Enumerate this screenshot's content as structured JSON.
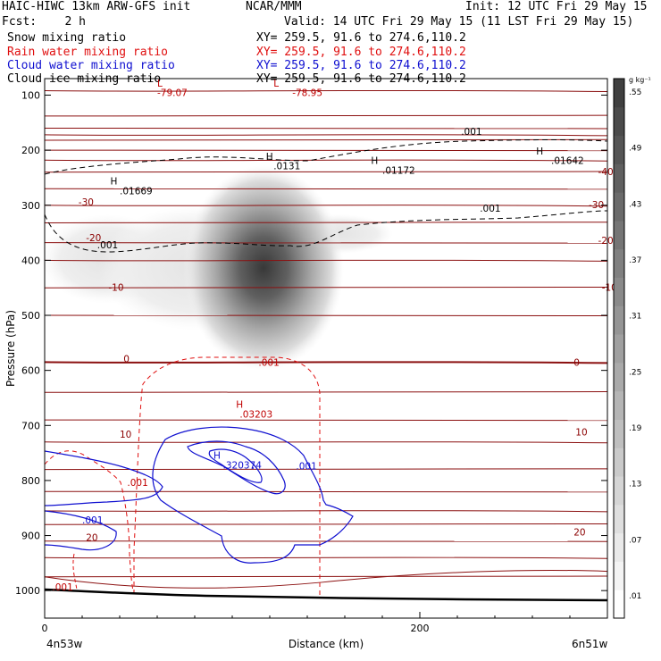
{
  "header": {
    "title": "HAIC-HIWC 13km ARW-GFS init",
    "org": "NCAR/MMM",
    "init": "Init: 12 UTC Fri 29 May 15",
    "fcst": "Fcst:    2 h",
    "valid": "Valid: 14 UTC Fri 29 May 15 (11 LST Fri 29 May 15)"
  },
  "fields": [
    {
      "label": "Snow mixing ratio",
      "xy": "XY= 259.5, 91.6 to 274.6,110.2",
      "color": "#000000"
    },
    {
      "label": "Rain water mixing ratio",
      "xy": "XY= 259.5, 91.6 to 274.6,110.2",
      "color": "#e01010"
    },
    {
      "label": "Cloud water mixing ratio",
      "xy": "XY= 259.5, 91.6 to 274.6,110.2",
      "color": "#1010d0"
    },
    {
      "label": "Cloud ice mixing ratio",
      "xy": "XY= 259.5, 91.6 to 274.6,110.2",
      "color": "#000000"
    }
  ],
  "chart_data": {
    "type": "heatmap",
    "xlabel": "Distance (km)",
    "ylabel": "Pressure (hPa)",
    "xlim": [
      0,
      300
    ],
    "ylim": [
      1050,
      70
    ],
    "x_ticks": [
      "0",
      "200"
    ],
    "y_ticks": [
      "100",
      "200",
      "300",
      "400",
      "500",
      "600",
      "700",
      "800",
      "900",
      "1000"
    ],
    "x_ends": [
      "4n53w",
      "6n51w"
    ],
    "colorbar": {
      "unit": "g kg⁻¹",
      "ticks": [
        ".01",
        ".07",
        ".13",
        ".19",
        ".25",
        ".31",
        ".37",
        ".43",
        ".49",
        ".55"
      ]
    },
    "snow_blob": {
      "center_km": 120,
      "center_hpa": 380,
      "max_label": ".01669"
    },
    "extrema_labels": [
      {
        "text": "L",
        "x": 60,
        "p": 85,
        "color": "#c00000"
      },
      {
        "text": "-79.07",
        "x": 60,
        "p": 102,
        "color": "#c00000"
      },
      {
        "text": "L",
        "x": 122,
        "p": 85,
        "color": "#c00000"
      },
      {
        "text": "-78.95",
        "x": 132,
        "p": 102,
        "color": "#c00000"
      },
      {
        "text": "H",
        "x": 35,
        "p": 262,
        "color": "#000000"
      },
      {
        "text": ".01669",
        "x": 40,
        "p": 280,
        "color": "#000000"
      },
      {
        "text": "H",
        "x": 118,
        "p": 218,
        "color": "#000000"
      },
      {
        "text": ".0131",
        "x": 122,
        "p": 235,
        "color": "#000000"
      },
      {
        "text": "H",
        "x": 174,
        "p": 225,
        "color": "#000000"
      },
      {
        "text": ".01172",
        "x": 180,
        "p": 243,
        "color": "#000000"
      },
      {
        "text": "H",
        "x": 262,
        "p": 208,
        "color": "#000000"
      },
      {
        "text": ".01642",
        "x": 270,
        "p": 225,
        "color": "#000000"
      },
      {
        "text": "H",
        "x": 102,
        "p": 668,
        "color": "#c00000"
      },
      {
        "text": ".03203",
        "x": 104,
        "p": 686,
        "color": "#c00000"
      },
      {
        "text": "H",
        "x": 90,
        "p": 760,
        "color": "#1010d0"
      },
      {
        "text": ".320374",
        "x": 95,
        "p": 778,
        "color": "#1010d0"
      }
    ],
    "contour_labels": [
      {
        "text": ".001",
        "x": 222,
        "p": 172,
        "color": "#000000"
      },
      {
        "text": ".001",
        "x": 232,
        "p": 312,
        "color": "#000000"
      },
      {
        "text": ".001",
        "x": 28,
        "p": 378,
        "color": "#000000"
      },
      {
        "text": "-40",
        "x": 295,
        "p": 245,
        "color": "#8b0000"
      },
      {
        "text": "-30",
        "x": 18,
        "p": 300,
        "color": "#8b0000"
      },
      {
        "text": "-30",
        "x": 290,
        "p": 305,
        "color": "#8b0000"
      },
      {
        "text": "-20",
        "x": 22,
        "p": 365,
        "color": "#8b0000"
      },
      {
        "text": "-20",
        "x": 295,
        "p": 370,
        "color": "#8b0000"
      },
      {
        "text": "-10",
        "x": 34,
        "p": 455,
        "color": "#8b0000"
      },
      {
        "text": "-10",
        "x": 297,
        "p": 455,
        "color": "#8b0000"
      },
      {
        "text": "0",
        "x": 42,
        "p": 585,
        "color": "#8b0000"
      },
      {
        "text": "0",
        "x": 282,
        "p": 592,
        "color": "#8b0000"
      },
      {
        "text": ".001",
        "x": 114,
        "p": 592,
        "color": "#c00000"
      },
      {
        "text": "10",
        "x": 40,
        "p": 722,
        "color": "#8b0000"
      },
      {
        "text": "10",
        "x": 283,
        "p": 718,
        "color": "#8b0000"
      },
      {
        "text": ".001",
        "x": 134,
        "p": 780,
        "color": "#1010d0"
      },
      {
        "text": ".001",
        "x": 44,
        "p": 810,
        "color": "#c00000"
      },
      {
        "text": ".001",
        "x": 20,
        "p": 878,
        "color": "#1010d0"
      },
      {
        "text": "20",
        "x": 22,
        "p": 910,
        "color": "#8b0000"
      },
      {
        "text": "20",
        "x": 282,
        "p": 900,
        "color": "#8b0000"
      },
      {
        "text": ".001",
        "x": 4,
        "p": 1000,
        "color": "#c00000"
      }
    ]
  }
}
